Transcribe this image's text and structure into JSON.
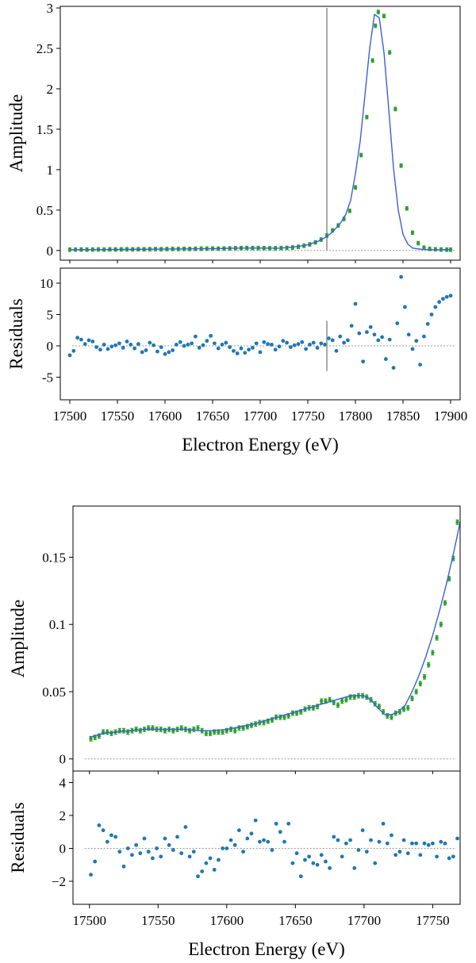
{
  "colors": {
    "fit_line": "#3a5fd9",
    "data_points": "#2ca02c",
    "residual_points": "#1f77b4",
    "marker_line": "#aaaaaa",
    "zero_line": "#999999"
  },
  "chart_data": [
    {
      "id": "top",
      "type": "line",
      "xlabel": "Electron Energy (eV)",
      "amp_ylabel": "Amplitude",
      "res_ylabel": "Residuals",
      "xlim": [
        17490,
        17910
      ],
      "amp_ylim": [
        -0.12,
        3.02
      ],
      "res_ylim": [
        -8.6,
        12.4
      ],
      "xticks": [
        "17500",
        "17550",
        "17600",
        "17650",
        "17700",
        "17750",
        "17800",
        "17850",
        "17900"
      ],
      "amp_yticks": [
        "0",
        "0.5",
        "1",
        "1.5",
        "2",
        "2.5",
        "3"
      ],
      "res_yticks": [
        "-5",
        "0",
        "5",
        "10"
      ],
      "marker_x": 17770,
      "marker_amp_range": [
        0.0,
        3.0
      ],
      "marker_res_range": [
        -4.0,
        4.0
      ],
      "series": [
        {
          "type": "line",
          "x": [
            17500,
            17550,
            17600,
            17650,
            17680,
            17700,
            17720,
            17740,
            17750,
            17760,
            17770,
            17775,
            17780,
            17785,
            17790,
            17795,
            17800,
            17805,
            17810,
            17815,
            17820,
            17825,
            17830,
            17835,
            17840,
            17845,
            17850,
            17855,
            17860,
            17870,
            17880,
            17890,
            17900
          ],
          "y": [
            0.01,
            0.012,
            0.018,
            0.022,
            0.03,
            0.03,
            0.028,
            0.05,
            0.07,
            0.11,
            0.17,
            0.22,
            0.28,
            0.35,
            0.45,
            0.62,
            0.95,
            1.35,
            1.92,
            2.5,
            2.92,
            2.88,
            2.45,
            1.75,
            1.02,
            0.5,
            0.2,
            0.08,
            0.03,
            0.012,
            0.01,
            0.01,
            0.01
          ]
        },
        {
          "type": "scatter",
          "x": [
            17500,
            17506,
            17512,
            17518,
            17524,
            17530,
            17536,
            17542,
            17548,
            17554,
            17560,
            17566,
            17572,
            17578,
            17584,
            17590,
            17596,
            17602,
            17608,
            17614,
            17620,
            17626,
            17632,
            17638,
            17644,
            17650,
            17656,
            17662,
            17668,
            17674,
            17680,
            17686,
            17692,
            17698,
            17704,
            17710,
            17716,
            17722,
            17728,
            17734,
            17740,
            17746,
            17752,
            17758,
            17764,
            17770,
            17776,
            17782,
            17788,
            17794,
            17800,
            17806,
            17812,
            17818,
            17821,
            17824,
            17830,
            17836,
            17842,
            17848,
            17854,
            17860,
            17866,
            17872,
            17878,
            17884,
            17890,
            17896,
            17900
          ],
          "y": [
            0.01,
            0.011,
            0.012,
            0.011,
            0.012,
            0.013,
            0.012,
            0.014,
            0.013,
            0.014,
            0.015,
            0.014,
            0.016,
            0.015,
            0.016,
            0.017,
            0.016,
            0.018,
            0.019,
            0.018,
            0.02,
            0.019,
            0.021,
            0.022,
            0.023,
            0.024,
            0.023,
            0.025,
            0.026,
            0.028,
            0.03,
            0.031,
            0.03,
            0.031,
            0.029,
            0.028,
            0.028,
            0.03,
            0.032,
            0.036,
            0.045,
            0.058,
            0.075,
            0.1,
            0.135,
            0.185,
            0.25,
            0.31,
            0.39,
            0.49,
            0.78,
            1.18,
            1.65,
            2.35,
            2.78,
            2.95,
            2.9,
            2.45,
            1.75,
            1.05,
            0.52,
            0.22,
            0.09,
            0.035,
            0.02,
            0.015,
            0.012,
            0.01,
            0.01
          ]
        }
      ],
      "residuals": {
        "x": [
          17500,
          17504,
          17508,
          17512,
          17516,
          17520,
          17524,
          17528,
          17532,
          17536,
          17540,
          17544,
          17548,
          17552,
          17556,
          17560,
          17564,
          17568,
          17572,
          17576,
          17580,
          17584,
          17588,
          17592,
          17596,
          17600,
          17604,
          17608,
          17612,
          17616,
          17620,
          17624,
          17628,
          17632,
          17636,
          17640,
          17644,
          17648,
          17652,
          17656,
          17660,
          17664,
          17668,
          17672,
          17676,
          17680,
          17684,
          17688,
          17692,
          17696,
          17700,
          17704,
          17708,
          17712,
          17716,
          17720,
          17724,
          17728,
          17732,
          17736,
          17740,
          17744,
          17748,
          17752,
          17756,
          17760,
          17764,
          17768,
          17772,
          17776,
          17780,
          17784,
          17788,
          17792,
          17796,
          17800,
          17804,
          17808,
          17812,
          17816,
          17820,
          17824,
          17828,
          17832,
          17836,
          17840,
          17844,
          17848,
          17852,
          17856,
          17860,
          17864,
          17868,
          17872,
          17876,
          17880,
          17884,
          17888,
          17892,
          17896,
          17900
        ],
        "y": [
          -1.5,
          -0.8,
          1.3,
          1.0,
          0.3,
          0.9,
          0.7,
          -0.2,
          -0.6,
          0.2,
          -0.5,
          -0.1,
          0.1,
          0.4,
          -0.3,
          0.7,
          0.2,
          -0.4,
          0.3,
          -1.0,
          -0.7,
          0.5,
          0.1,
          -0.9,
          -0.2,
          -1.3,
          -1.0,
          -0.7,
          0.2,
          0.6,
          0.0,
          0.2,
          0.4,
          1.5,
          -0.3,
          0.1,
          0.8,
          1.6,
          0.4,
          -0.4,
          0.2,
          0.5,
          -0.2,
          -0.8,
          -1.2,
          -0.4,
          -1.1,
          -0.6,
          -0.3,
          0.4,
          -1.0,
          0.6,
          0.3,
          0.2,
          -0.6,
          -0.1,
          0.8,
          0.5,
          -0.2,
          0.1,
          0.3,
          0.6,
          -0.5,
          0.2,
          0.5,
          -0.3,
          0.4,
          0.2,
          1.2,
          0.9,
          -0.8,
          1.5,
          0.5,
          0.9,
          3.2,
          6.7,
          2.0,
          -2.5,
          2.2,
          3.0,
          1.8,
          0.9,
          1.4,
          -2.1,
          1.0,
          -3.5,
          3.6,
          11.0,
          6.2,
          1.8,
          -0.5,
          0.8,
          -3.0,
          1.5,
          3.5,
          5.0,
          6.2,
          7.0,
          7.5,
          7.8,
          8.0
        ]
      }
    },
    {
      "id": "bottom",
      "type": "line",
      "xlabel": "Electron Energy (eV)",
      "amp_ylabel": "Amplitude",
      "res_ylabel": "Residuals",
      "xlim": [
        17488,
        17770
      ],
      "amp_ylim": [
        -0.009,
        0.188
      ],
      "res_ylim": [
        -3.4,
        4.7
      ],
      "xticks": [
        "17500",
        "17550",
        "17600",
        "17650",
        "17700",
        "17750"
      ],
      "amp_yticks": [
        "0",
        "0.05",
        "0.1",
        "0.15"
      ],
      "res_yticks": [
        "−2",
        "0",
        "2",
        "4"
      ],
      "series": [
        {
          "type": "line",
          "x": [
            17500,
            17510,
            17520,
            17530,
            17540,
            17550,
            17560,
            17570,
            17580,
            17590,
            17600,
            17610,
            17620,
            17630,
            17640,
            17650,
            17660,
            17670,
            17680,
            17690,
            17700,
            17705,
            17710,
            17715,
            17720,
            17725,
            17730,
            17735,
            17740,
            17745,
            17750,
            17755,
            17760,
            17765,
            17770
          ],
          "y": [
            0.016,
            0.019,
            0.02,
            0.021,
            0.022,
            0.022,
            0.022,
            0.022,
            0.021,
            0.021,
            0.022,
            0.024,
            0.026,
            0.029,
            0.032,
            0.035,
            0.038,
            0.041,
            0.044,
            0.047,
            0.047,
            0.044,
            0.038,
            0.033,
            0.033,
            0.035,
            0.04,
            0.05,
            0.062,
            0.076,
            0.092,
            0.11,
            0.13,
            0.152,
            0.176
          ]
        },
        {
          "type": "scatter",
          "x": [
            17501,
            17504,
            17507,
            17510,
            17513,
            17516,
            17519,
            17522,
            17525,
            17528,
            17531,
            17534,
            17537,
            17540,
            17543,
            17546,
            17549,
            17552,
            17555,
            17558,
            17561,
            17564,
            17567,
            17570,
            17573,
            17576,
            17579,
            17582,
            17585,
            17588,
            17591,
            17594,
            17597,
            17600,
            17603,
            17606,
            17609,
            17612,
            17615,
            17618,
            17621,
            17624,
            17627,
            17630,
            17633,
            17636,
            17639,
            17642,
            17645,
            17648,
            17651,
            17654,
            17657,
            17660,
            17663,
            17666,
            17669,
            17672,
            17675,
            17678,
            17681,
            17684,
            17687,
            17690,
            17693,
            17696,
            17699,
            17702,
            17705,
            17708,
            17711,
            17714,
            17717,
            17720,
            17723,
            17726,
            17729,
            17732,
            17735,
            17738,
            17741,
            17744,
            17747,
            17750,
            17753,
            17756,
            17759,
            17762,
            17765,
            17768
          ],
          "y": [
            0.015,
            0.016,
            0.017,
            0.02,
            0.02,
            0.019,
            0.02,
            0.021,
            0.021,
            0.02,
            0.021,
            0.022,
            0.021,
            0.022,
            0.023,
            0.023,
            0.022,
            0.022,
            0.021,
            0.022,
            0.021,
            0.022,
            0.023,
            0.022,
            0.021,
            0.022,
            0.023,
            0.021,
            0.019,
            0.019,
            0.02,
            0.02,
            0.02,
            0.021,
            0.022,
            0.021,
            0.023,
            0.023,
            0.024,
            0.025,
            0.026,
            0.027,
            0.027,
            0.028,
            0.029,
            0.031,
            0.031,
            0.031,
            0.032,
            0.034,
            0.034,
            0.035,
            0.037,
            0.038,
            0.038,
            0.039,
            0.043,
            0.043,
            0.044,
            0.042,
            0.04,
            0.043,
            0.044,
            0.046,
            0.046,
            0.047,
            0.047,
            0.046,
            0.044,
            0.041,
            0.039,
            0.035,
            0.032,
            0.031,
            0.034,
            0.035,
            0.037,
            0.038,
            0.045,
            0.05,
            0.056,
            0.061,
            0.07,
            0.079,
            0.09,
            0.1,
            0.116,
            0.134,
            0.149,
            0.176
          ]
        }
      ],
      "residuals": {
        "x": [
          17501,
          17504,
          17507,
          17510,
          17513,
          17516,
          17519,
          17522,
          17525,
          17528,
          17531,
          17534,
          17537,
          17540,
          17543,
          17546,
          17549,
          17552,
          17555,
          17558,
          17561,
          17564,
          17567,
          17570,
          17573,
          17576,
          17579,
          17582,
          17585,
          17588,
          17591,
          17594,
          17597,
          17600,
          17603,
          17606,
          17609,
          17612,
          17615,
          17618,
          17621,
          17624,
          17627,
          17630,
          17633,
          17636,
          17639,
          17642,
          17645,
          17648,
          17651,
          17654,
          17657,
          17660,
          17663,
          17666,
          17669,
          17672,
          17675,
          17678,
          17681,
          17684,
          17687,
          17690,
          17693,
          17696,
          17699,
          17702,
          17705,
          17708,
          17711,
          17714,
          17717,
          17720,
          17723,
          17726,
          17729,
          17732,
          17735,
          17738,
          17741,
          17744,
          17747,
          17750,
          17753,
          17756,
          17759,
          17762,
          17765,
          17768
        ],
        "y": [
          -1.6,
          -0.8,
          1.4,
          1.1,
          0.4,
          0.8,
          0.7,
          -0.2,
          -1.1,
          0.0,
          -0.4,
          0.2,
          -0.3,
          0.6,
          -0.2,
          -0.6,
          0.0,
          -0.5,
          0.6,
          0.2,
          -0.1,
          0.7,
          -0.3,
          1.3,
          -0.5,
          -0.2,
          -1.7,
          -1.4,
          -0.9,
          -0.6,
          -1.3,
          -0.7,
          0.0,
          0.0,
          0.5,
          0.2,
          1.1,
          -0.2,
          0.6,
          0.9,
          1.7,
          0.4,
          0.5,
          0.4,
          -0.1,
          1.5,
          1.0,
          0.4,
          1.5,
          -0.9,
          -0.3,
          -1.7,
          -0.7,
          -0.5,
          -0.9,
          -1.0,
          -0.4,
          -0.8,
          -1.2,
          0.7,
          0.5,
          -0.5,
          0.3,
          0.5,
          -1.2,
          -0.1,
          1.1,
          -0.2,
          0.5,
          -0.9,
          0.4,
          1.5,
          0.3,
          0.8,
          -0.4,
          -0.2,
          0.5,
          -0.3,
          0.3,
          0.3,
          -0.4,
          0.3,
          0.2,
          0.3,
          -0.5,
          0.4,
          0.3,
          -0.6,
          -0.5,
          0.6
        ]
      }
    }
  ]
}
